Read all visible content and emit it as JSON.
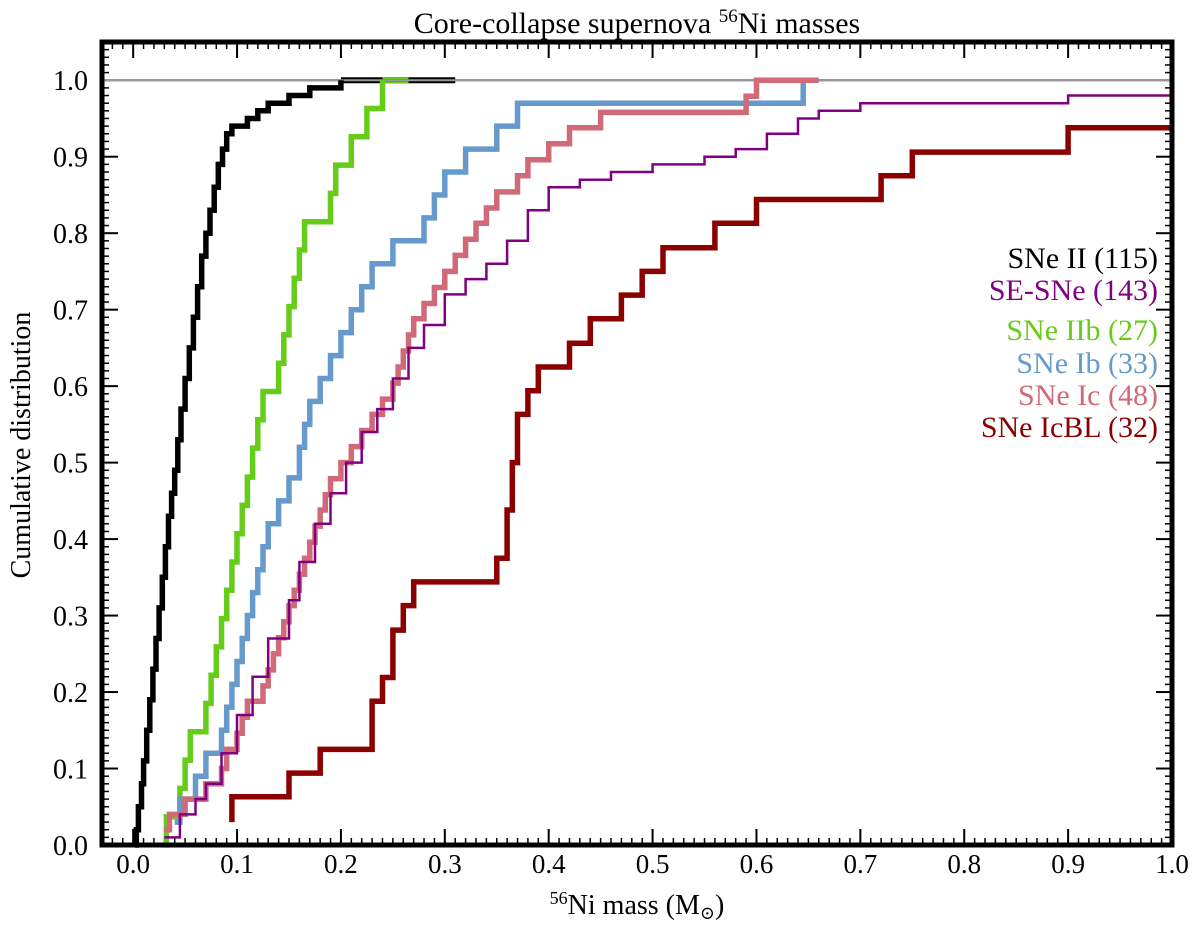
{
  "chart_data": {
    "type": "line",
    "title_prefix": "Core-collapse supernova ",
    "title_sup": "56",
    "title_suffix": "Ni masses",
    "xlabel_sup": "56",
    "xlabel_main": "Ni mass (M",
    "xlabel_sun": "⊙",
    "xlabel_close": ")",
    "ylabel": "Cumulative distribution",
    "xlim": [
      -0.03,
      1.0
    ],
    "ylim": [
      0.0,
      1.05
    ],
    "xticks": [
      0.0,
      0.1,
      0.2,
      0.3,
      0.4,
      0.5,
      0.6,
      0.7,
      0.8,
      0.9,
      1.0
    ],
    "xtick_labels": [
      "0.0",
      "0.1",
      "0.2",
      "0.3",
      "0.4",
      "0.5",
      "0.6",
      "0.7",
      "0.8",
      "0.9",
      "1.0"
    ],
    "yticks": [
      0.0,
      0.1,
      0.2,
      0.3,
      0.4,
      0.5,
      0.6,
      0.7,
      0.8,
      0.9,
      1.0
    ],
    "ytick_labels": [
      "0.0",
      "0.1",
      "0.2",
      "0.3",
      "0.4",
      "0.5",
      "0.6",
      "0.7",
      "0.8",
      "0.9",
      "1.0"
    ],
    "reference_line": {
      "y": 1.0,
      "color": "#999999"
    },
    "legend_position": "right",
    "series": [
      {
        "name": "SNe II",
        "count_label": "(115)",
        "color": "#000000",
        "style": "thick",
        "points": [
          [
            0.002,
            0.0
          ],
          [
            0.003,
            0.02
          ],
          [
            0.005,
            0.05
          ],
          [
            0.008,
            0.08
          ],
          [
            0.01,
            0.11
          ],
          [
            0.013,
            0.15
          ],
          [
            0.016,
            0.19
          ],
          [
            0.019,
            0.23
          ],
          [
            0.022,
            0.27
          ],
          [
            0.025,
            0.31
          ],
          [
            0.028,
            0.35
          ],
          [
            0.031,
            0.39
          ],
          [
            0.034,
            0.43
          ],
          [
            0.037,
            0.46
          ],
          [
            0.04,
            0.49
          ],
          [
            0.043,
            0.53
          ],
          [
            0.046,
            0.57
          ],
          [
            0.05,
            0.61
          ],
          [
            0.054,
            0.65
          ],
          [
            0.058,
            0.69
          ],
          [
            0.062,
            0.73
          ],
          [
            0.066,
            0.77
          ],
          [
            0.07,
            0.8
          ],
          [
            0.074,
            0.83
          ],
          [
            0.078,
            0.86
          ],
          [
            0.082,
            0.89
          ],
          [
            0.086,
            0.91
          ],
          [
            0.09,
            0.93
          ],
          [
            0.095,
            0.94
          ],
          [
            0.11,
            0.95
          ],
          [
            0.12,
            0.96
          ],
          [
            0.13,
            0.97
          ],
          [
            0.15,
            0.98
          ],
          [
            0.17,
            0.99
          ],
          [
            0.2,
            1.0
          ]
        ],
        "extension": [
          [
            0.2,
            1.0
          ],
          [
            0.31,
            1.0
          ]
        ]
      },
      {
        "name": "SE-SNe",
        "count_label": "(143)",
        "color": "#800080",
        "style": "thin",
        "points": [
          [
            0.03,
            0.01
          ],
          [
            0.045,
            0.04
          ],
          [
            0.06,
            0.06
          ],
          [
            0.07,
            0.08
          ],
          [
            0.085,
            0.12
          ],
          [
            0.1,
            0.17
          ],
          [
            0.115,
            0.22
          ],
          [
            0.13,
            0.27
          ],
          [
            0.15,
            0.32
          ],
          [
            0.16,
            0.37
          ],
          [
            0.175,
            0.42
          ],
          [
            0.19,
            0.46
          ],
          [
            0.205,
            0.5
          ],
          [
            0.22,
            0.54
          ],
          [
            0.235,
            0.57
          ],
          [
            0.25,
            0.61
          ],
          [
            0.265,
            0.65
          ],
          [
            0.28,
            0.68
          ],
          [
            0.3,
            0.72
          ],
          [
            0.32,
            0.74
          ],
          [
            0.34,
            0.76
          ],
          [
            0.36,
            0.79
          ],
          [
            0.38,
            0.83
          ],
          [
            0.4,
            0.86
          ],
          [
            0.43,
            0.87
          ],
          [
            0.46,
            0.88
          ],
          [
            0.5,
            0.89
          ],
          [
            0.55,
            0.9
          ],
          [
            0.58,
            0.91
          ],
          [
            0.61,
            0.93
          ],
          [
            0.64,
            0.95
          ],
          [
            0.66,
            0.96
          ],
          [
            0.7,
            0.97
          ],
          [
            0.9,
            0.98
          ],
          [
            1.0,
            0.98
          ]
        ]
      },
      {
        "name": "SNe IIb",
        "count_label": "(27)",
        "color": "#66cc1a",
        "style": "thick",
        "points": [
          [
            0.03,
            0.0
          ],
          [
            0.032,
            0.037
          ],
          [
            0.045,
            0.074
          ],
          [
            0.05,
            0.111
          ],
          [
            0.055,
            0.148
          ],
          [
            0.07,
            0.185
          ],
          [
            0.075,
            0.222
          ],
          [
            0.08,
            0.259
          ],
          [
            0.085,
            0.296
          ],
          [
            0.09,
            0.333
          ],
          [
            0.095,
            0.37
          ],
          [
            0.1,
            0.407
          ],
          [
            0.105,
            0.444
          ],
          [
            0.11,
            0.481
          ],
          [
            0.115,
            0.519
          ],
          [
            0.12,
            0.556
          ],
          [
            0.125,
            0.593
          ],
          [
            0.14,
            0.63
          ],
          [
            0.145,
            0.667
          ],
          [
            0.15,
            0.704
          ],
          [
            0.155,
            0.741
          ],
          [
            0.16,
            0.778
          ],
          [
            0.165,
            0.815
          ],
          [
            0.19,
            0.852
          ],
          [
            0.195,
            0.889
          ],
          [
            0.21,
            0.926
          ],
          [
            0.225,
            0.963
          ],
          [
            0.24,
            1.0
          ]
        ],
        "extension": [
          [
            0.24,
            1.0
          ],
          [
            0.265,
            1.0
          ]
        ]
      },
      {
        "name": "SNe Ib",
        "count_label": "(33)",
        "color": "#6699cc",
        "style": "thick",
        "points": [
          [
            0.04,
            0.03
          ],
          [
            0.045,
            0.06
          ],
          [
            0.06,
            0.09
          ],
          [
            0.07,
            0.12
          ],
          [
            0.085,
            0.15
          ],
          [
            0.09,
            0.18
          ],
          [
            0.095,
            0.21
          ],
          [
            0.1,
            0.24
          ],
          [
            0.105,
            0.27
          ],
          [
            0.11,
            0.3
          ],
          [
            0.115,
            0.33
          ],
          [
            0.12,
            0.36
          ],
          [
            0.125,
            0.39
          ],
          [
            0.13,
            0.42
          ],
          [
            0.14,
            0.45
          ],
          [
            0.15,
            0.48
          ],
          [
            0.16,
            0.52
          ],
          [
            0.165,
            0.55
          ],
          [
            0.17,
            0.58
          ],
          [
            0.18,
            0.61
          ],
          [
            0.19,
            0.64
          ],
          [
            0.2,
            0.67
          ],
          [
            0.21,
            0.7
          ],
          [
            0.22,
            0.73
          ],
          [
            0.23,
            0.76
          ],
          [
            0.25,
            0.79
          ],
          [
            0.28,
            0.82
          ],
          [
            0.29,
            0.85
          ],
          [
            0.3,
            0.88
          ],
          [
            0.32,
            0.91
          ],
          [
            0.35,
            0.94
          ],
          [
            0.37,
            0.97
          ],
          [
            0.58,
            0.97
          ],
          [
            0.645,
            1.0
          ]
        ]
      },
      {
        "name": "SNe Ic",
        "count_label": "(48)",
        "color": "#d06a78",
        "style": "thick",
        "points": [
          [
            0.03,
            0.02
          ],
          [
            0.035,
            0.04
          ],
          [
            0.05,
            0.06
          ],
          [
            0.07,
            0.08
          ],
          [
            0.085,
            0.1
          ],
          [
            0.09,
            0.125
          ],
          [
            0.1,
            0.146
          ],
          [
            0.105,
            0.167
          ],
          [
            0.11,
            0.188
          ],
          [
            0.125,
            0.208
          ],
          [
            0.13,
            0.229
          ],
          [
            0.135,
            0.25
          ],
          [
            0.14,
            0.271
          ],
          [
            0.145,
            0.292
          ],
          [
            0.15,
            0.313
          ],
          [
            0.155,
            0.333
          ],
          [
            0.16,
            0.354
          ],
          [
            0.165,
            0.375
          ],
          [
            0.17,
            0.396
          ],
          [
            0.175,
            0.417
          ],
          [
            0.18,
            0.438
          ],
          [
            0.185,
            0.458
          ],
          [
            0.19,
            0.479
          ],
          [
            0.2,
            0.5
          ],
          [
            0.21,
            0.521
          ],
          [
            0.22,
            0.542
          ],
          [
            0.23,
            0.563
          ],
          [
            0.24,
            0.583
          ],
          [
            0.25,
            0.604
          ],
          [
            0.255,
            0.625
          ],
          [
            0.26,
            0.646
          ],
          [
            0.265,
            0.667
          ],
          [
            0.27,
            0.688
          ],
          [
            0.28,
            0.708
          ],
          [
            0.29,
            0.729
          ],
          [
            0.3,
            0.75
          ],
          [
            0.31,
            0.771
          ],
          [
            0.32,
            0.792
          ],
          [
            0.33,
            0.813
          ],
          [
            0.34,
            0.833
          ],
          [
            0.35,
            0.854
          ],
          [
            0.37,
            0.875
          ],
          [
            0.38,
            0.896
          ],
          [
            0.4,
            0.917
          ],
          [
            0.42,
            0.938
          ],
          [
            0.45,
            0.958
          ],
          [
            0.59,
            0.979
          ],
          [
            0.6,
            1.0
          ],
          [
            0.66,
            1.0
          ]
        ]
      },
      {
        "name": "SNe IcBL",
        "count_label": "(32)",
        "color": "#8b0000",
        "style": "thick",
        "points": [
          [
            0.095,
            0.03
          ],
          [
            0.095,
            0.063
          ],
          [
            0.15,
            0.063
          ],
          [
            0.15,
            0.094
          ],
          [
            0.18,
            0.094
          ],
          [
            0.18,
            0.125
          ],
          [
            0.22,
            0.125
          ],
          [
            0.23,
            0.156
          ],
          [
            0.23,
            0.188
          ],
          [
            0.24,
            0.219
          ],
          [
            0.25,
            0.25
          ],
          [
            0.25,
            0.281
          ],
          [
            0.26,
            0.313
          ],
          [
            0.27,
            0.344
          ],
          [
            0.35,
            0.344
          ],
          [
            0.35,
            0.375
          ],
          [
            0.36,
            0.406
          ],
          [
            0.36,
            0.438
          ],
          [
            0.365,
            0.469
          ],
          [
            0.365,
            0.5
          ],
          [
            0.37,
            0.531
          ],
          [
            0.37,
            0.563
          ],
          [
            0.38,
            0.594
          ],
          [
            0.39,
            0.625
          ],
          [
            0.42,
            0.625
          ],
          [
            0.42,
            0.656
          ],
          [
            0.44,
            0.688
          ],
          [
            0.47,
            0.719
          ],
          [
            0.49,
            0.75
          ],
          [
            0.51,
            0.781
          ],
          [
            0.56,
            0.813
          ],
          [
            0.6,
            0.844
          ],
          [
            0.67,
            0.844
          ],
          [
            0.72,
            0.875
          ],
          [
            0.75,
            0.906
          ],
          [
            0.9,
            0.938
          ],
          [
            1.0,
            0.938
          ]
        ]
      }
    ]
  }
}
